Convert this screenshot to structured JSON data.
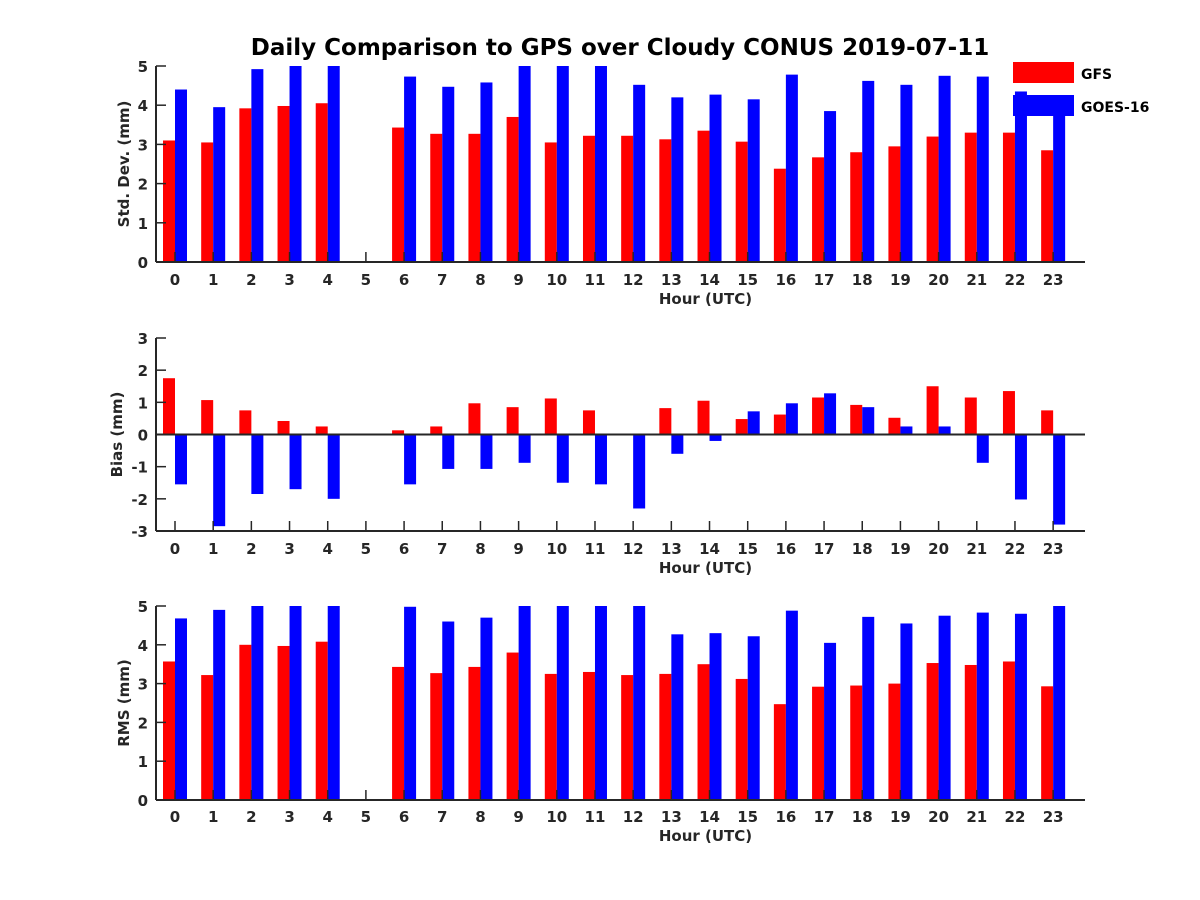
{
  "title": "Daily Comparison to GPS over Cloudy CONUS 2019-07-11",
  "legend": {
    "entries": [
      {
        "label": "GFS",
        "color": "#ff0000"
      },
      {
        "label": "GOES-16",
        "color": "#0000ff"
      }
    ]
  },
  "chart_data": [
    {
      "type": "bar",
      "title": "Daily Comparison to GPS over Cloudy CONUS 2019-07-11",
      "xlabel": "Hour (UTC)",
      "ylabel": "Std. Dev. (mm)",
      "ylim": [
        0,
        5
      ],
      "yticks": [
        0,
        1,
        2,
        3,
        4,
        5
      ],
      "categories": [
        "0",
        "1",
        "2",
        "3",
        "4",
        "5",
        "6",
        "7",
        "8",
        "9",
        "10",
        "11",
        "12",
        "13",
        "14",
        "15",
        "16",
        "17",
        "18",
        "19",
        "20",
        "21",
        "22",
        "23"
      ],
      "series": [
        {
          "name": "GFS",
          "color": "#ff0000",
          "values": [
            3.1,
            3.05,
            3.92,
            3.98,
            4.05,
            null,
            3.43,
            3.27,
            3.27,
            3.7,
            3.05,
            3.22,
            3.22,
            3.13,
            3.35,
            3.07,
            2.38,
            2.67,
            2.8,
            2.95,
            3.2,
            3.3,
            3.3,
            2.85
          ]
        },
        {
          "name": "GOES-16",
          "color": "#0000ff",
          "values": [
            4.4,
            3.95,
            4.92,
            5.0,
            5.0,
            null,
            4.73,
            4.47,
            4.58,
            5.0,
            5.0,
            5.0,
            4.52,
            4.2,
            4.27,
            4.15,
            4.78,
            3.85,
            4.62,
            4.52,
            4.75,
            4.73,
            4.35,
            3.82
          ]
        }
      ]
    },
    {
      "type": "bar",
      "xlabel": "Hour (UTC)",
      "ylabel": "Bias (mm)",
      "ylim": [
        -3,
        3
      ],
      "yticks": [
        -3,
        -2,
        -1,
        0,
        1,
        2,
        3
      ],
      "categories": [
        "0",
        "1",
        "2",
        "3",
        "4",
        "5",
        "6",
        "7",
        "8",
        "9",
        "10",
        "11",
        "12",
        "13",
        "14",
        "15",
        "16",
        "17",
        "18",
        "19",
        "20",
        "21",
        "22",
        "23"
      ],
      "series": [
        {
          "name": "GFS",
          "color": "#ff0000",
          "values": [
            1.75,
            1.07,
            0.75,
            0.42,
            0.25,
            null,
            0.13,
            0.25,
            0.97,
            0.85,
            1.12,
            0.75,
            0.03,
            0.82,
            1.05,
            0.48,
            0.62,
            1.15,
            0.92,
            0.52,
            1.5,
            1.15,
            1.35,
            0.75
          ]
        },
        {
          "name": "GOES-16",
          "color": "#0000ff",
          "values": [
            -1.55,
            -2.85,
            -1.85,
            -1.7,
            -2.0,
            null,
            -1.55,
            -1.07,
            -1.07,
            -0.88,
            -1.5,
            -1.55,
            -2.3,
            -0.6,
            -0.2,
            0.72,
            0.97,
            1.28,
            0.85,
            0.25,
            0.25,
            -0.88,
            -2.02,
            -2.8
          ]
        }
      ]
    },
    {
      "type": "bar",
      "xlabel": "Hour (UTC)",
      "ylabel": "RMS (mm)",
      "ylim": [
        0,
        5
      ],
      "yticks": [
        0,
        1,
        2,
        3,
        4,
        5
      ],
      "categories": [
        "0",
        "1",
        "2",
        "3",
        "4",
        "5",
        "6",
        "7",
        "8",
        "9",
        "10",
        "11",
        "12",
        "13",
        "14",
        "15",
        "16",
        "17",
        "18",
        "19",
        "20",
        "21",
        "22",
        "23"
      ],
      "series": [
        {
          "name": "GFS",
          "color": "#ff0000",
          "values": [
            3.57,
            3.22,
            4.0,
            3.97,
            4.08,
            null,
            3.43,
            3.27,
            3.43,
            3.8,
            3.25,
            3.3,
            3.22,
            3.25,
            3.5,
            3.12,
            2.47,
            2.92,
            2.95,
            3.0,
            3.53,
            3.48,
            3.57,
            2.93
          ]
        },
        {
          "name": "GOES-16",
          "color": "#0000ff",
          "values": [
            4.68,
            4.9,
            5.0,
            5.0,
            5.0,
            null,
            4.98,
            4.6,
            4.7,
            5.0,
            5.0,
            5.0,
            5.0,
            4.27,
            4.3,
            4.22,
            4.88,
            4.05,
            4.72,
            4.55,
            4.75,
            4.83,
            4.8,
            5.0
          ]
        }
      ]
    }
  ]
}
